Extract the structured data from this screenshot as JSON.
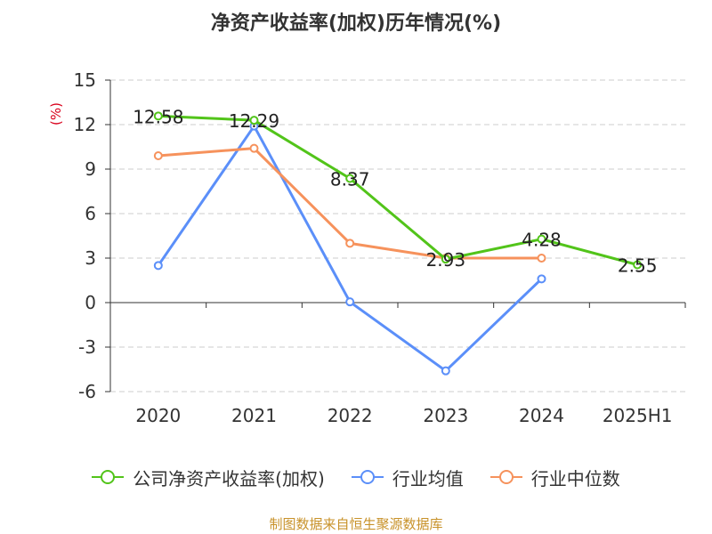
{
  "chart_data": {
    "type": "line",
    "title": "净资产收益率(加权)历年情况(%)",
    "ylabel": "(%)",
    "xlabel": "",
    "categories": [
      "2020",
      "2021",
      "2022",
      "2023",
      "2024",
      "2025H1"
    ],
    "ylim": [
      -6,
      15
    ],
    "yticks": [
      15,
      12,
      9,
      6,
      3,
      0,
      -3,
      -6
    ],
    "grid": true,
    "legend_position": "bottom",
    "series": [
      {
        "name": "公司净资产收益率(加权)",
        "color": "#52c41a",
        "values": [
          12.58,
          12.29,
          8.37,
          2.93,
          4.28,
          2.55
        ],
        "labels": [
          "12.58",
          "12.29",
          "8.37",
          "2.93",
          "4.28",
          "2.55"
        ]
      },
      {
        "name": "行业均值",
        "color": "#5b8ff9",
        "values": [
          2.5,
          11.9,
          0.05,
          -4.6,
          1.6,
          null
        ]
      },
      {
        "name": "行业中位数",
        "color": "#f6925c",
        "values": [
          9.9,
          10.4,
          4.0,
          3.0,
          3.0,
          null
        ]
      }
    ]
  },
  "source": "制图数据来自恒生聚源数据库"
}
